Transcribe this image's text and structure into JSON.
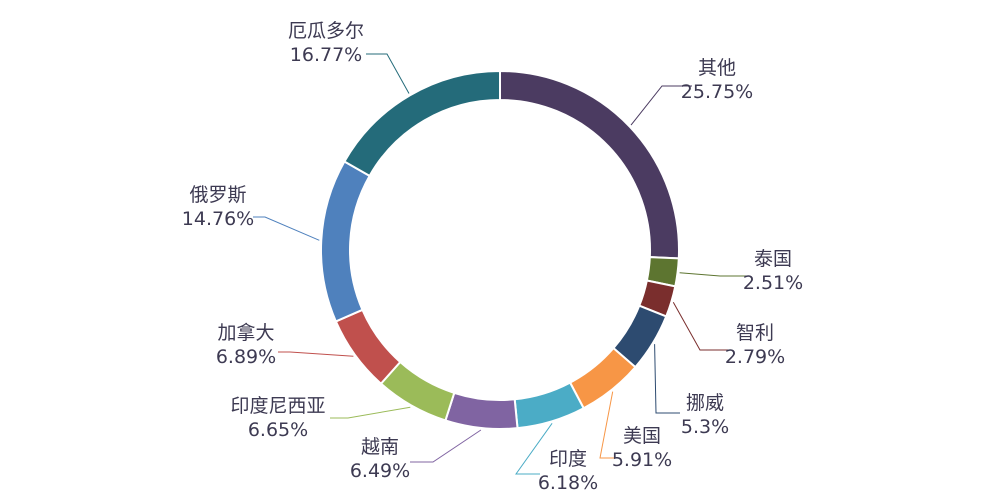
{
  "chart_data": {
    "type": "pie",
    "variant": "donut",
    "title": "",
    "legend": "none",
    "slices": [
      {
        "label": "其他",
        "value": 25.75,
        "value_label": "25.75%",
        "color": "#4b3b61"
      },
      {
        "label": "泰国",
        "value": 2.51,
        "value_label": "2.51%",
        "color": "#5d7530"
      },
      {
        "label": "智利",
        "value": 2.79,
        "value_label": "2.79%",
        "color": "#7a2e2d"
      },
      {
        "label": "挪威",
        "value": 5.3,
        "value_label": "5.3%",
        "color": "#2d4b70"
      },
      {
        "label": "美国",
        "value": 5.91,
        "value_label": "5.91%",
        "color": "#f79646"
      },
      {
        "label": "印度",
        "value": 6.18,
        "value_label": "6.18%",
        "color": "#4bacc6"
      },
      {
        "label": "越南",
        "value": 6.49,
        "value_label": "6.49%",
        "color": "#8064a2"
      },
      {
        "label": "印度尼西亚",
        "value": 6.65,
        "value_label": "6.65%",
        "color": "#9bbb59"
      },
      {
        "label": "加拿大",
        "value": 6.89,
        "value_label": "6.89%",
        "color": "#c0504d"
      },
      {
        "label": "俄罗斯",
        "value": 14.76,
        "value_label": "14.76%",
        "color": "#4f81bd"
      },
      {
        "label": "厄瓜多尔",
        "value": 16.77,
        "value_label": "16.77%",
        "color": "#246b7a"
      }
    ]
  }
}
